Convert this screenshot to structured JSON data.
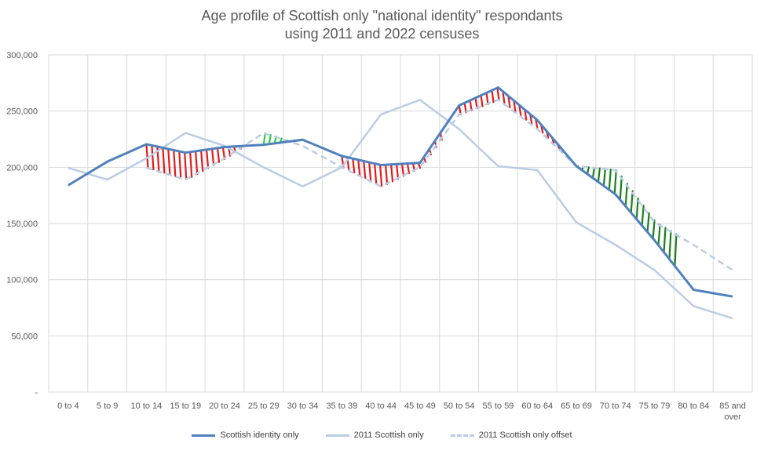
{
  "chart_data": {
    "type": "line",
    "title": "Age profile of Scottish only \"national identity\" respondants",
    "subtitle": "using 2011 and 2022 censuses",
    "xlabel": "",
    "ylabel": "",
    "ylim": [
      0,
      300000
    ],
    "y_ticks": [
      0,
      50000,
      100000,
      150000,
      200000,
      250000,
      300000
    ],
    "y_tick_labels": [
      "-",
      "50,000",
      "100,000",
      "150,000",
      "200,000",
      "250,000",
      "300,000"
    ],
    "categories": [
      "0 to  4",
      "5 to 9",
      "10 to 14",
      "15 to 19",
      "20 to 24",
      "25 to 29",
      "30 to 34",
      "35 to 39",
      "40 to 44",
      "45 to 49",
      "50 to 54",
      "55 to 59",
      "60 to 64",
      "65 to 69",
      "70 to 74",
      "75 to 79",
      "80 to 84",
      "85 and over"
    ],
    "grid": "vertical and horizontal",
    "legend": "bottom-center",
    "series": [
      {
        "name": "Scottish identity only",
        "color": "#4F81BD",
        "style": "solid",
        "values": [
          184000,
          205000,
          220500,
          213000,
          218000,
          220000,
          224500,
          210000,
          202000,
          204000,
          255000,
          271000,
          242000,
          201000,
          176000,
          135000,
          91000,
          85000
        ]
      },
      {
        "name": "2011 Scottish only",
        "color": "#B9CDE5",
        "style": "solid",
        "values": [
          199500,
          189000,
          208000,
          230500,
          219000,
          200000,
          183000,
          200000,
          247000,
          260000,
          234000,
          201000,
          197500,
          151000,
          131000,
          108500,
          76500,
          65500
        ]
      },
      {
        "name": "2011 Scottish only offset",
        "color": "#B9CDE5",
        "style": "dashed",
        "values": [
          null,
          null,
          199500,
          189000,
          208000,
          230500,
          219000,
          200000,
          183000,
          200000,
          247000,
          260000,
          234000,
          201000,
          197500,
          151000,
          131000,
          108500
        ]
      }
    ],
    "annotations": [
      {
        "description": "red hatching: Scottish identity above offset",
        "color": "#E31A1C",
        "from": "10 to 14",
        "to": "20 to 24"
      },
      {
        "description": "green hatching: Scottish identity below offset",
        "color": "#2ECC40",
        "from": "25 to 29",
        "to": "25 to 29"
      },
      {
        "description": "red hatching: Scottish identity above offset",
        "color": "#E31A1C",
        "from": "35 to 39",
        "to": "45 to 49"
      },
      {
        "description": "red hatching: Scottish identity above offset",
        "color": "#E31A1C",
        "from": "50 to 54",
        "to": "60 to 64"
      },
      {
        "description": "green hatching: Scottish identity below offset",
        "color": "#1A7F1A",
        "from": "65 to 69",
        "to": "75 to 79"
      }
    ]
  },
  "colors": {
    "grid": "#D9D9D9",
    "axis_text": "#595959"
  }
}
